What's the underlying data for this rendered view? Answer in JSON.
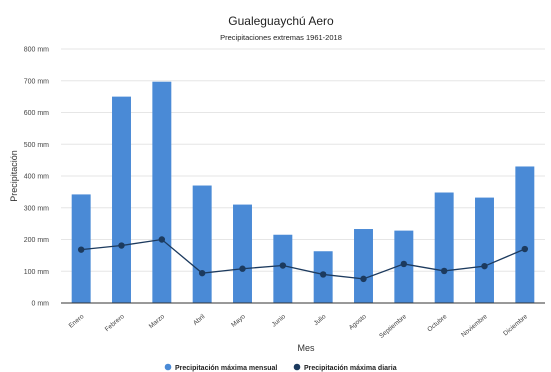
{
  "chart_data": {
    "type": "bar",
    "title": "Gualeguaychú Aero",
    "subtitle": "Precipitaciones extremas 1961-2018",
    "xlabel": "Mes",
    "ylabel": "Precipitación",
    "ylim": [
      0,
      800
    ],
    "yticks": [
      0,
      100,
      200,
      300,
      400,
      500,
      600,
      700,
      800
    ],
    "ytick_labels": [
      "0 mm",
      "100 mm",
      "200 mm",
      "300 mm",
      "400 mm",
      "500 mm",
      "600 mm",
      "700 mm",
      "800 mm"
    ],
    "categories": [
      "Enero",
      "Febrero",
      "Marzo",
      "Abril",
      "Mayo",
      "Junio",
      "Julio",
      "Agosto",
      "Septiembre",
      "Octubre",
      "Noviembre",
      "Diciembre"
    ],
    "grid": true,
    "legend_position": "bottom",
    "series": [
      {
        "name": "Precipitación máxima mensual",
        "kind": "bar",
        "color": "#4a8ad6",
        "values": [
          342,
          650,
          697,
          370,
          310,
          215,
          163,
          233,
          228,
          348,
          332,
          430
        ]
      },
      {
        "name": "Precipitación máxima diaria",
        "kind": "line",
        "color": "#1c3a5e",
        "values": [
          168,
          181,
          200,
          94,
          108,
          118,
          90,
          76,
          123,
          101,
          116,
          170
        ]
      }
    ]
  }
}
